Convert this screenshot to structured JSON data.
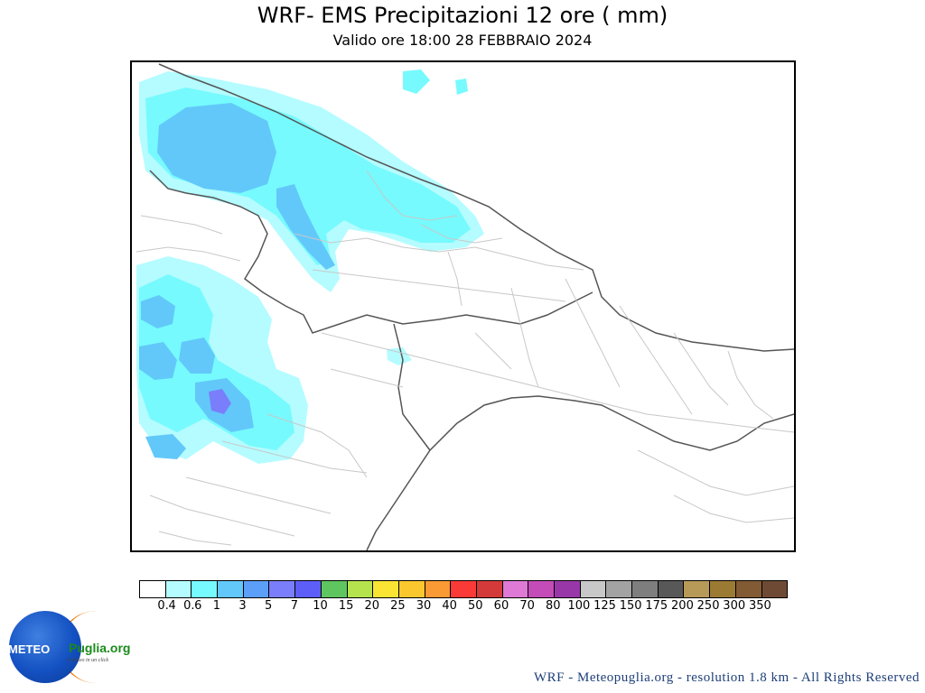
{
  "header": {
    "title": "WRF- EMS Precipitazioni 12 ore ( mm)",
    "subtitle": "Valido ore 18:00 28 FEBBRAIO 2024"
  },
  "legend": {
    "colors": [
      "#ffffff",
      "#b4fcff",
      "#76fafe",
      "#62c8fa",
      "#5c9ff8",
      "#7a7efa",
      "#5d5ef8",
      "#5fc65f",
      "#b4e34e",
      "#fae534",
      "#fac82e",
      "#fa9a34",
      "#fa3a36",
      "#d53a3a",
      "#de7ad6",
      "#c44cb8",
      "#9838a8",
      "#c8c8c8",
      "#a3a3a3",
      "#7e7e7e",
      "#585858",
      "#b89a58",
      "#9b7a34",
      "#825a34",
      "#6e4a34"
    ],
    "labels": [
      "0.",
      "4",
      "0.",
      "6",
      "1",
      "3",
      "5",
      "7",
      "10",
      "15",
      "20",
      "25",
      "30",
      "40",
      "50",
      "60",
      "70",
      "80",
      "100",
      "125",
      "150",
      "175",
      "200",
      "250",
      "300",
      "350"
    ]
  },
  "logo": {
    "left_text": "METEO",
    "right_text": "Puglia.org",
    "tagline": "Il meteo in un click"
  },
  "footer": {
    "credits": "WRF - Meteopuglia.org - resolution 1.8 km - All Rights Reserved"
  },
  "map": {
    "region": "Puglia"
  }
}
